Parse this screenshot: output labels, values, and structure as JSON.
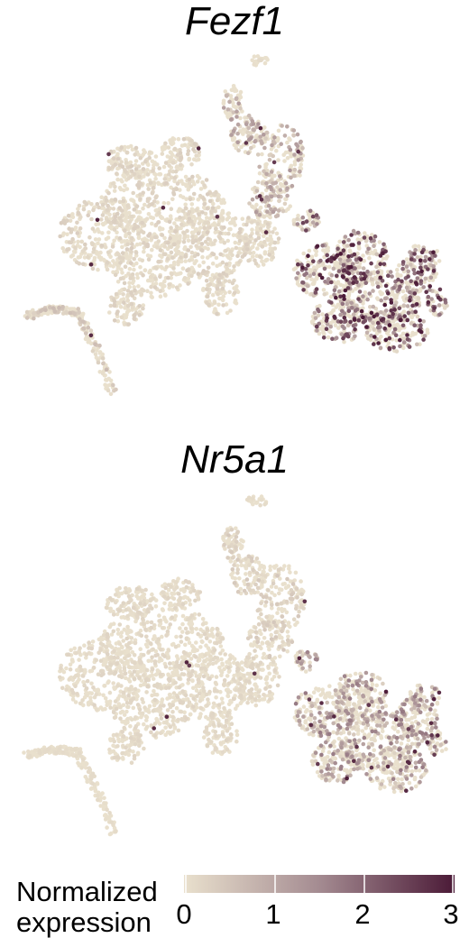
{
  "colors": {
    "low": "#e9e0cd",
    "mid": "#a48b91",
    "high": "#4b1a37"
  },
  "chart_data": [
    {
      "type": "scatter",
      "title": "Fezf1",
      "xlabel": "",
      "ylabel": "",
      "grid": false,
      "color_scale": {
        "label": "Normalized expression",
        "range": [
          0,
          3
        ]
      },
      "hotspots": [
        {
          "region": "right-cluster",
          "mean_expression": 1.4
        },
        {
          "region": "upper-right-arm",
          "mean_expression": 0.6
        },
        {
          "region": "left-tail",
          "mean_expression": 0.3
        },
        {
          "region": "central-body",
          "mean_expression": 0.15
        }
      ]
    },
    {
      "type": "scatter",
      "title": "Nr5a1",
      "xlabel": "",
      "ylabel": "",
      "grid": false,
      "color_scale": {
        "label": "Normalized expression",
        "range": [
          0,
          3
        ]
      },
      "hotspots": [
        {
          "region": "right-cluster",
          "mean_expression": 0.8
        },
        {
          "region": "upper-right-arm",
          "mean_expression": 0.2
        },
        {
          "region": "left-tail",
          "mean_expression": 0.05
        },
        {
          "region": "central-body",
          "mean_expression": 0.1
        }
      ]
    }
  ],
  "legend": {
    "title_line1": "Normalized",
    "title_line2": "expression",
    "ticks": [
      "0",
      "1",
      "2",
      "3"
    ]
  }
}
